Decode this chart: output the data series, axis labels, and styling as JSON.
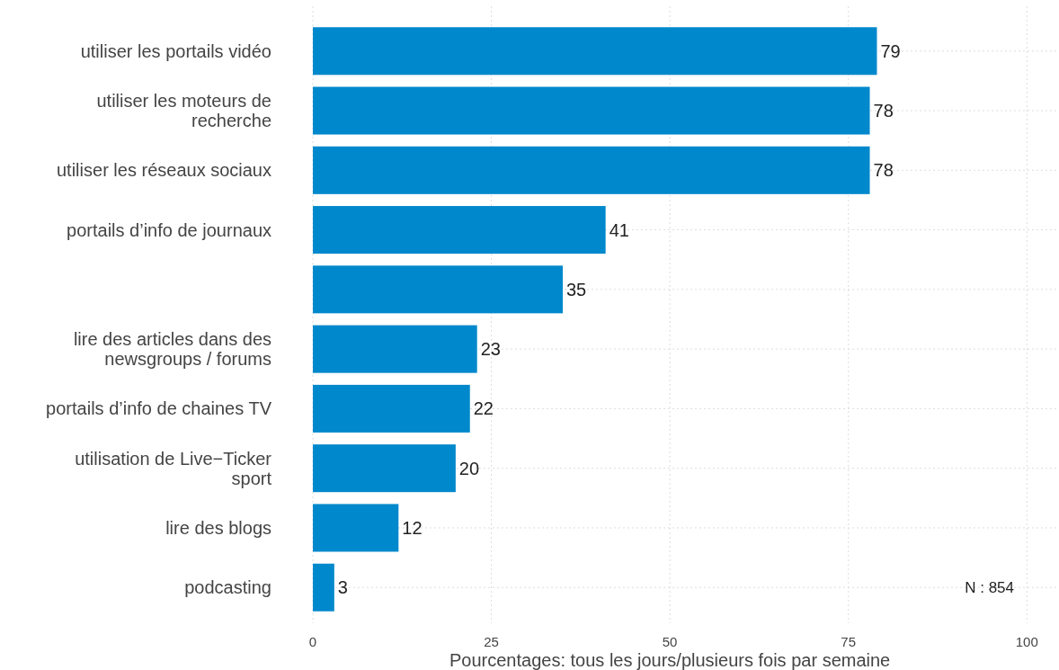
{
  "chart_data": {
    "type": "bar",
    "orientation": "horizontal",
    "categories": [
      "utiliser les portails vidéo",
      "utiliser les moteurs de\nrecherche",
      "utiliser les réseaux sociaux",
      "portails d’info de journaux",
      null,
      "lire des articles dans des\nnewsgroups / forums",
      "portails d’info de chaines TV",
      "utilisation de Live−Ticker\nsport",
      "lire des blogs",
      "podcasting"
    ],
    "values": [
      79,
      78,
      78,
      41,
      35,
      23,
      22,
      20,
      12,
      3
    ],
    "color": "#0088cc",
    "data_labels": true,
    "xlim": [
      0,
      104.5
    ],
    "xticks": [
      0,
      25,
      50,
      75,
      100
    ],
    "grid": true,
    "xlabel": "Pourcentages: tous les jours/plusieurs fois par semaine",
    "annotations": [
      "N : 854"
    ]
  }
}
